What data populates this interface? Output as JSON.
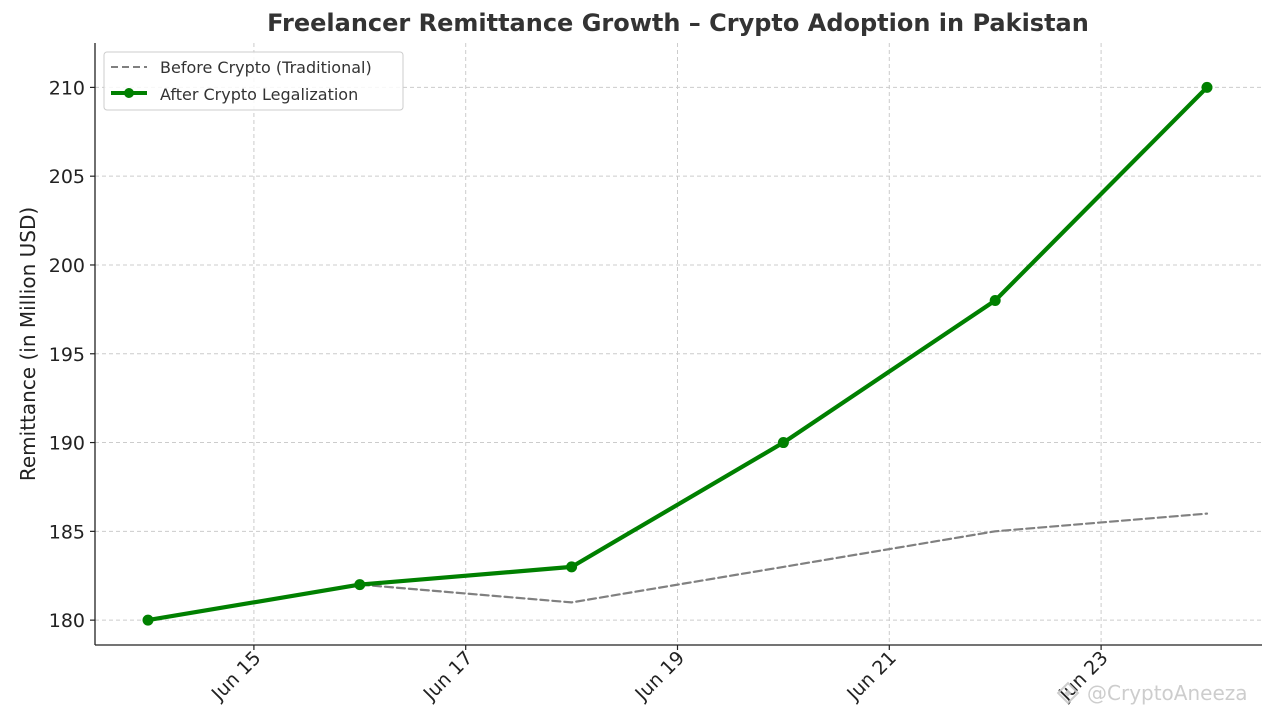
{
  "chart_data": {
    "type": "line",
    "title": "Freelancer Remittance Growth – Crypto Adoption in Pakistan",
    "xlabel": "",
    "ylabel": "Remittance (in Million USD)",
    "x": [
      "Jun 14",
      "Jun 16",
      "Jun 18",
      "Jun 20",
      "Jun 22",
      "Jun 24"
    ],
    "x_ticks": [
      "Jun 15",
      "Jun 17",
      "Jun 19",
      "Jun 21",
      "Jun 23"
    ],
    "y_ticks": [
      180,
      185,
      190,
      195,
      200,
      205,
      210
    ],
    "ylim": [
      178.6,
      212.5
    ],
    "grid": true,
    "legend_position": "top-left",
    "series": [
      {
        "name": "Before Crypto (Traditional)",
        "style": "dashed",
        "color": "#808080",
        "values": [
          180,
          182,
          181,
          183,
          185,
          186
        ]
      },
      {
        "name": "After Crypto Legalization",
        "style": "solid-markers",
        "color": "#008000",
        "values": [
          180,
          182,
          183,
          190,
          198,
          210
        ]
      }
    ]
  },
  "watermark": "@CryptoAneeza"
}
